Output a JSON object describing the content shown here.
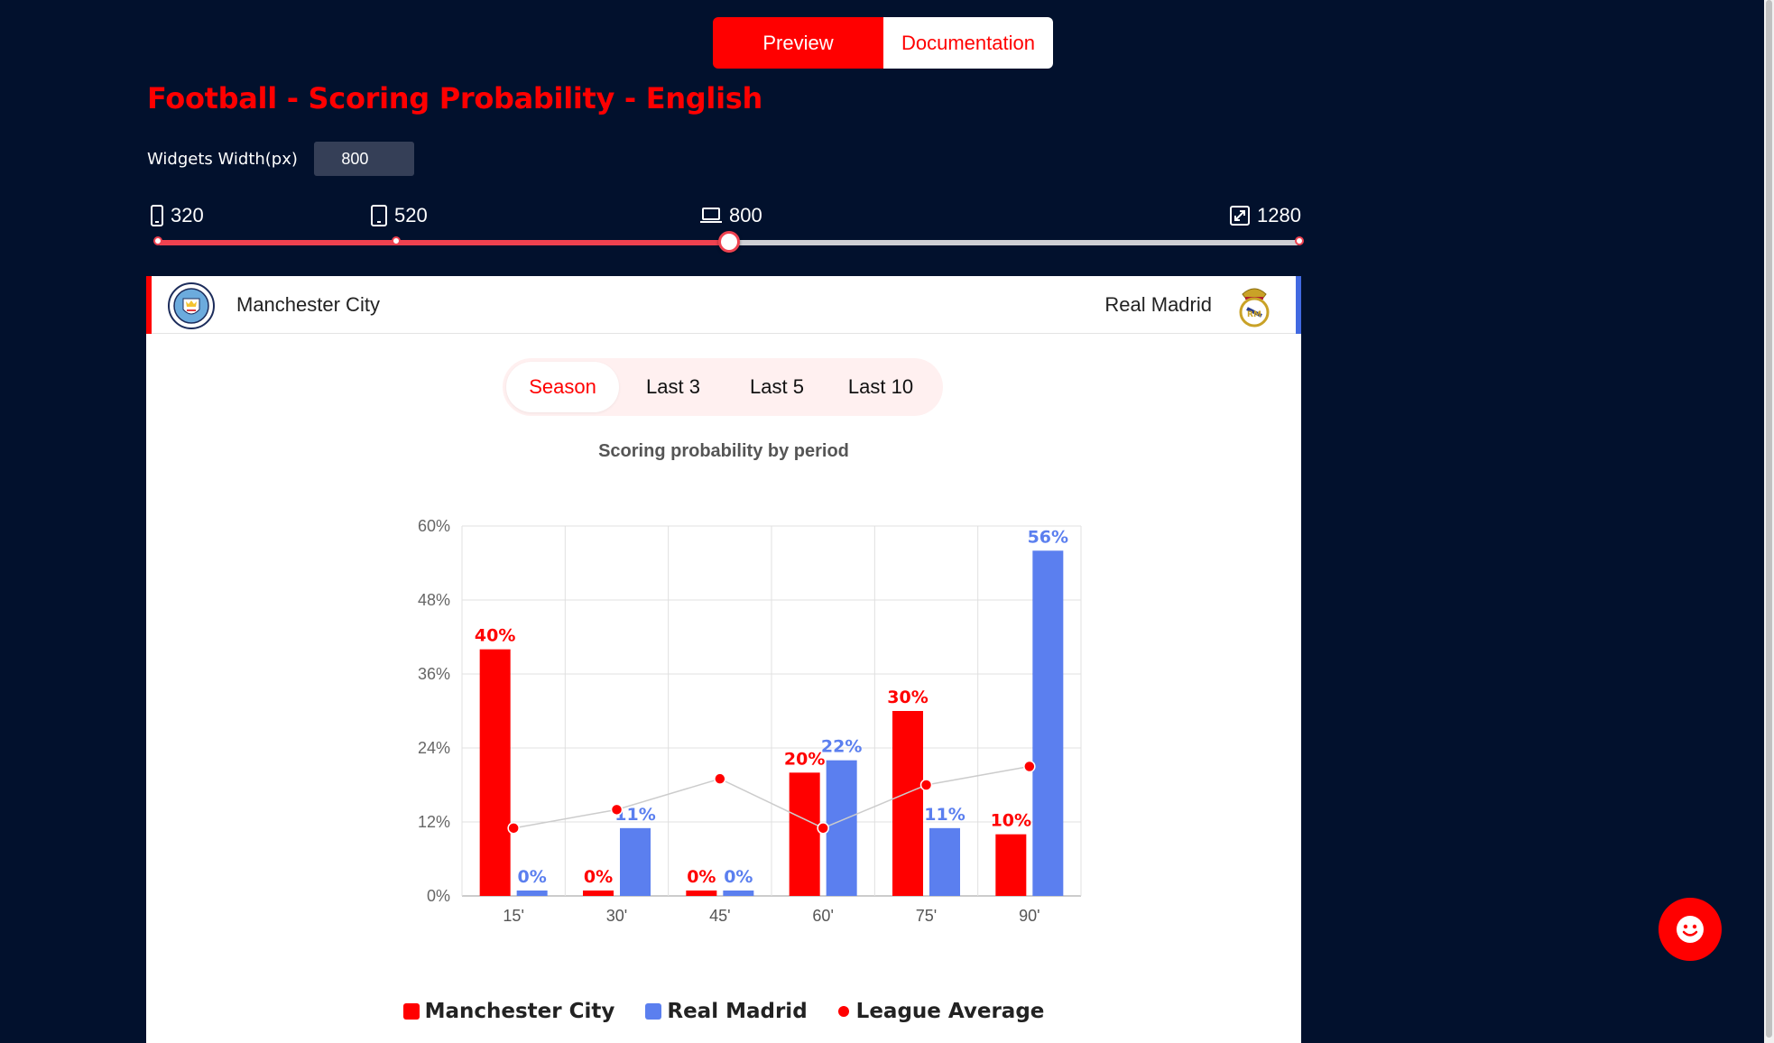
{
  "topbar": {
    "preview_label": "Preview",
    "documentation_label": "Documentation"
  },
  "page_title": "Football - Scoring Probability - English",
  "width_control": {
    "label": "Widgets Width(px)",
    "value": "800"
  },
  "breakpoints": [
    {
      "label": "320",
      "icon": "mobile-icon"
    },
    {
      "label": "520",
      "icon": "tablet-icon"
    },
    {
      "label": "800",
      "icon": "laptop-icon"
    },
    {
      "label": "1280",
      "icon": "expand-icon"
    }
  ],
  "slider": {
    "min": 320,
    "max": 1280,
    "value": 800
  },
  "widget": {
    "home_team": "Manchester City",
    "away_team": "Real Madrid",
    "tabs": [
      "Season",
      "Last 3",
      "Last 5",
      "Last 10"
    ],
    "active_tab": "Season"
  },
  "colors": {
    "home": "#ff0000",
    "away": "#5b7fef",
    "accent": "#ff0000",
    "background": "#02112d"
  },
  "chart_data": {
    "type": "bar",
    "title": "Scoring probability by period",
    "categories": [
      "15'",
      "30'",
      "45'",
      "60'",
      "75'",
      "90'"
    ],
    "series": [
      {
        "name": "Manchester City",
        "type": "bar",
        "values": [
          40,
          0,
          0,
          20,
          30,
          10
        ],
        "labels": [
          "40%",
          "0%",
          "0%",
          "20%",
          "30%",
          "10%"
        ]
      },
      {
        "name": "Real Madrid",
        "type": "bar",
        "values": [
          0,
          11,
          0,
          22,
          11,
          56
        ],
        "labels": [
          "0%",
          "11%",
          "0%",
          "22%",
          "11%",
          "56%"
        ]
      },
      {
        "name": "League Average",
        "type": "line",
        "values": [
          11,
          14,
          19,
          11,
          18,
          21
        ]
      }
    ],
    "ylim": [
      0,
      60
    ],
    "yticks": [
      "0%",
      "12%",
      "24%",
      "36%",
      "48%",
      "60%"
    ],
    "grid": true,
    "legend_position": "bottom"
  }
}
